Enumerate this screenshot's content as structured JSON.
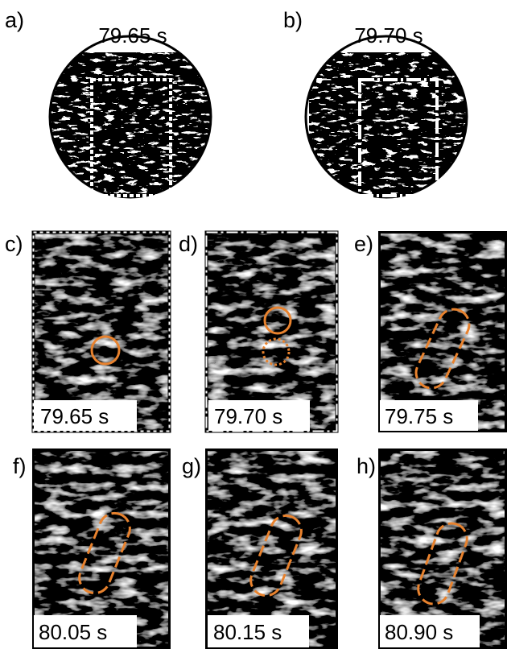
{
  "panels": [
    {
      "label": "a)",
      "time": "79.65 s"
    },
    {
      "label": "b)",
      "time": "79.70 s"
    },
    {
      "label": "c)",
      "time": "79.65 s"
    },
    {
      "label": "d)",
      "time": "79.70 s"
    },
    {
      "label": "e)",
      "time": "79.75 s"
    },
    {
      "label": "f)",
      "time": "80.05 s"
    },
    {
      "label": "g)",
      "time": "80.15 s"
    },
    {
      "label": "h)",
      "time": "80.90 s"
    }
  ]
}
